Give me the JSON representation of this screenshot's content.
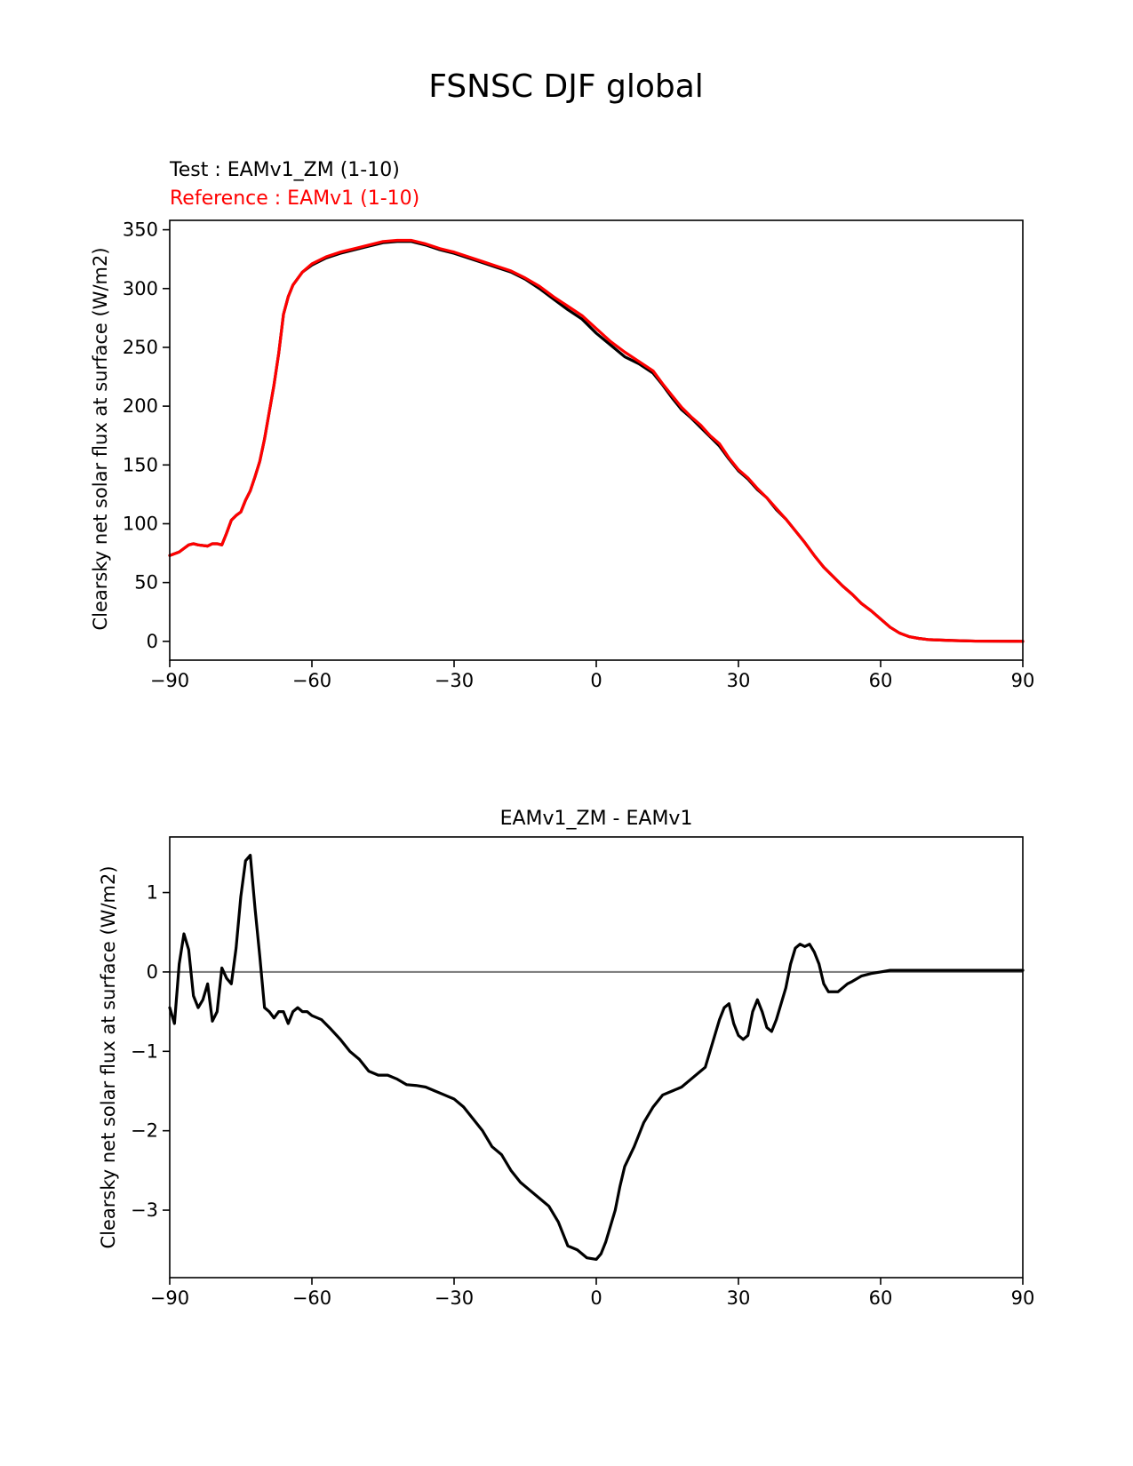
{
  "figure": {
    "title": "FSNSC DJF global"
  },
  "chart_data": [
    {
      "type": "line",
      "test_label": "Test : EAMv1_ZM (1-10)",
      "reference_label": "Reference : EAMv1 (1-10)",
      "xlabel": "",
      "ylabel": "Clearsky net solar flux at surface (W/m2)",
      "xlim": [
        -90,
        90
      ],
      "ylim": [
        -16,
        358
      ],
      "xticks": [
        -90,
        -60,
        -30,
        0,
        30,
        60,
        90
      ],
      "xtick_labels": [
        "−90",
        "−60",
        "−30",
        "0",
        "30",
        "60",
        "90"
      ],
      "yticks": [
        0,
        50,
        100,
        150,
        200,
        250,
        300,
        350
      ],
      "ytick_labels": [
        "0",
        "50",
        "100",
        "150",
        "200",
        "250",
        "300",
        "350"
      ],
      "colors": {
        "test": "#000000",
        "reference": "#ff0000"
      },
      "x": [
        -90,
        -88,
        -87,
        -86,
        -85,
        -84,
        -82,
        -81,
        -80,
        -79,
        -78,
        -77,
        -76,
        -75,
        -74,
        -73,
        -72,
        -71,
        -70,
        -69,
        -68,
        -67,
        -66,
        -65,
        -64,
        -62,
        -60,
        -57,
        -54,
        -51,
        -48,
        -45,
        -42,
        -39,
        -36,
        -33,
        -30,
        -27,
        -24,
        -21,
        -18,
        -15,
        -12,
        -9,
        -6,
        -3,
        0,
        3,
        6,
        9,
        12,
        14,
        16,
        18,
        20,
        22,
        24,
        26,
        28,
        30,
        32,
        34,
        36,
        38,
        40,
        42,
        44,
        46,
        48,
        50,
        52,
        54,
        56,
        58,
        60,
        62,
        64,
        66,
        68,
        70,
        75,
        80,
        85,
        90
      ],
      "series": [
        {
          "name": "Test : EAMv1_ZM (1-10)",
          "values": [
            73,
            76,
            79,
            82,
            83,
            82,
            81,
            83,
            83,
            82,
            92,
            103,
            107,
            110,
            120,
            128,
            140,
            153,
            172,
            195,
            218,
            245,
            278,
            293,
            303,
            314,
            320,
            326,
            330,
            333,
            336,
            339,
            340,
            340,
            337,
            333,
            330,
            326,
            322,
            318,
            314,
            308,
            300,
            291,
            282,
            274,
            262,
            252,
            242,
            236,
            228,
            218,
            207,
            197,
            190,
            182,
            174,
            166,
            155,
            145,
            138,
            129,
            122,
            112,
            104,
            94,
            84,
            73,
            63,
            55,
            47,
            40,
            32,
            26,
            19,
            12,
            7,
            4,
            2.5,
            1.5,
            0.7,
            0.2,
            0.1,
            0
          ],
          "color": "#000000"
        },
        {
          "name": "Reference : EAMv1 (1-10)",
          "values": [
            73,
            76,
            79,
            82,
            83,
            82,
            81,
            83,
            83,
            82,
            92,
            103,
            107,
            110,
            120,
            128,
            140,
            153,
            172,
            195,
            218,
            245,
            278,
            293,
            303,
            314,
            321,
            327,
            331,
            334,
            337,
            340,
            341,
            341,
            338,
            334,
            331,
            327,
            323,
            319,
            315,
            309,
            302,
            293,
            285,
            277,
            266,
            255,
            246,
            238,
            230,
            219,
            209,
            199,
            191,
            184,
            175,
            168,
            156,
            146,
            139,
            130,
            122,
            113,
            104,
            94,
            84,
            73,
            63,
            55,
            47,
            40,
            32,
            26,
            19,
            12,
            7,
            4,
            2.5,
            1.5,
            0.7,
            0.2,
            0.1,
            0
          ],
          "color": "#ff0000"
        }
      ]
    },
    {
      "type": "line",
      "title": "EAMv1_ZM - EAMv1",
      "xlabel": "",
      "ylabel": "Clearsky net solar flux at surface (W/m2)",
      "xlim": [
        -90,
        90
      ],
      "ylim": [
        -3.85,
        1.7
      ],
      "xticks": [
        -90,
        -60,
        -30,
        0,
        30,
        60,
        90
      ],
      "xtick_labels": [
        "−90",
        "−60",
        "−30",
        "0",
        "30",
        "60",
        "90"
      ],
      "yticks": [
        -3,
        -2,
        -1,
        0,
        1
      ],
      "ytick_labels": [
        "−3",
        "−2",
        "−1",
        "0",
        "1"
      ],
      "zero_line_color": "#808080",
      "x": [
        -90,
        -89,
        -88,
        -87,
        -86,
        -85,
        -84,
        -83,
        -82,
        -81,
        -80,
        -79,
        -78,
        -77,
        -76,
        -75,
        -74,
        -73,
        -72,
        -71,
        -70,
        -69,
        -68,
        -67,
        -66,
        -65,
        -64,
        -63,
        -62,
        -61,
        -60,
        -58,
        -56,
        -54,
        -52,
        -50,
        -48,
        -46,
        -44,
        -42,
        -40,
        -38,
        -36,
        -34,
        -32,
        -30,
        -28,
        -26,
        -24,
        -22,
        -20,
        -18,
        -16,
        -14,
        -12,
        -10,
        -8,
        -6,
        -4,
        -2,
        0,
        1,
        2,
        3,
        4,
        5,
        6,
        8,
        10,
        12,
        14,
        16,
        18,
        20,
        22,
        23,
        24,
        25,
        26,
        27,
        28,
        29,
        30,
        31,
        32,
        33,
        34,
        35,
        36,
        37,
        38,
        39,
        40,
        41,
        42,
        43,
        44,
        45,
        46,
        47,
        48,
        49,
        50,
        51,
        52,
        53,
        54,
        56,
        58,
        60,
        62,
        64,
        66,
        68,
        70,
        75,
        80,
        85,
        90
      ],
      "series": [
        {
          "name": "EAMv1_ZM - EAMv1",
          "values": [
            -0.45,
            -0.65,
            0.1,
            0.48,
            0.28,
            -0.3,
            -0.45,
            -0.35,
            -0.15,
            -0.62,
            -0.5,
            0.05,
            -0.08,
            -0.15,
            0.3,
            0.95,
            1.4,
            1.47,
            0.8,
            0.2,
            -0.45,
            -0.5,
            -0.58,
            -0.5,
            -0.5,
            -0.65,
            -0.5,
            -0.45,
            -0.5,
            -0.5,
            -0.55,
            -0.6,
            -0.72,
            -0.85,
            -1.0,
            -1.1,
            -1.25,
            -1.3,
            -1.3,
            -1.35,
            -1.42,
            -1.43,
            -1.45,
            -1.5,
            -1.55,
            -1.6,
            -1.7,
            -1.85,
            -2.0,
            -2.2,
            -2.3,
            -2.5,
            -2.65,
            -2.75,
            -2.85,
            -2.95,
            -3.15,
            -3.45,
            -3.5,
            -3.6,
            -3.62,
            -3.55,
            -3.4,
            -3.2,
            -3.0,
            -2.7,
            -2.45,
            -2.2,
            -1.9,
            -1.7,
            -1.55,
            -1.5,
            -1.45,
            -1.35,
            -1.25,
            -1.2,
            -1.0,
            -0.8,
            -0.6,
            -0.45,
            -0.4,
            -0.65,
            -0.8,
            -0.85,
            -0.8,
            -0.5,
            -0.35,
            -0.5,
            -0.7,
            -0.75,
            -0.6,
            -0.4,
            -0.2,
            0.1,
            0.3,
            0.35,
            0.32,
            0.35,
            0.25,
            0.1,
            -0.15,
            -0.25,
            -0.25,
            -0.25,
            -0.2,
            -0.15,
            -0.12,
            -0.05,
            -0.02,
            0.0,
            0.02,
            0.02,
            0.02,
            0.02,
            0.02,
            0.02,
            0.02,
            0.02,
            0.02
          ],
          "color": "#000000"
        }
      ]
    }
  ]
}
